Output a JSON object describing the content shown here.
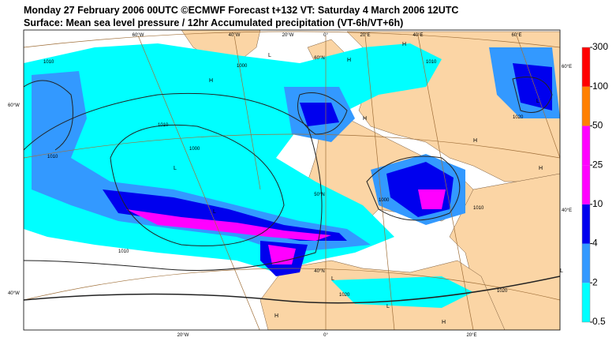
{
  "header": {
    "title": "Monday 27 February 2006 00UTC ©ECMWF Forecast t+132 VT: Saturday 4 March 2006 12UTC",
    "subtitle": "Surface: Mean sea level pressure / 12hr Accumulated precipitation (VT-6h/VT+6h)"
  },
  "legend": {
    "levels": [
      0.5,
      2,
      4,
      10,
      25,
      50,
      100,
      300
    ],
    "colors": [
      "#00ffff",
      "#3399ff",
      "#0000ee",
      "#ff00ff",
      "#ff00ff",
      "#ff8000",
      "#ff0000"
    ]
  },
  "map": {
    "graticule_labels": [
      "60°W",
      "40°W",
      "20°W",
      "0°",
      "20°E",
      "40°E",
      "60°E",
      "60°W",
      "40°W",
      "60°E",
      "40°E",
      "20°W",
      "0°",
      "20°E",
      "60°N",
      "50°N",
      "40°N"
    ],
    "isobar_labels": [
      "1010",
      "1000",
      "1010",
      "1000",
      "1010",
      "1020",
      "1010",
      "1020",
      "1020",
      "1010",
      "1000",
      "1010"
    ],
    "pressure_centres": [
      "H",
      "L",
      "H",
      "L",
      "L",
      "H",
      "L",
      "H",
      "H",
      "L",
      "H",
      "L",
      "H",
      "L",
      "H"
    ]
  }
}
